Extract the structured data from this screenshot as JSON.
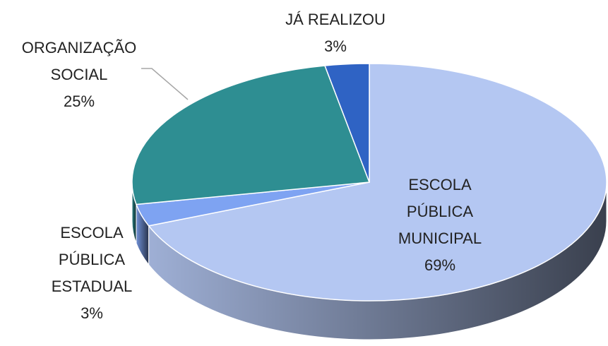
{
  "chart_data": {
    "type": "pie3d",
    "categories": [
      "ESCOLA PÚBLICA MUNICIPAL",
      "ESCOLA PÚBLICA ESTADUAL",
      "ORGANIZAÇÃO SOCIAL",
      "JÁ REALIZOU"
    ],
    "values": [
      69,
      3,
      25,
      3
    ],
    "value_labels": [
      "69%",
      "3%",
      "25%",
      "3%"
    ],
    "colors": [
      "#b4c7f2",
      "#7ea3f2",
      "#2e8e92",
      "#2f63c4"
    ]
  }
}
